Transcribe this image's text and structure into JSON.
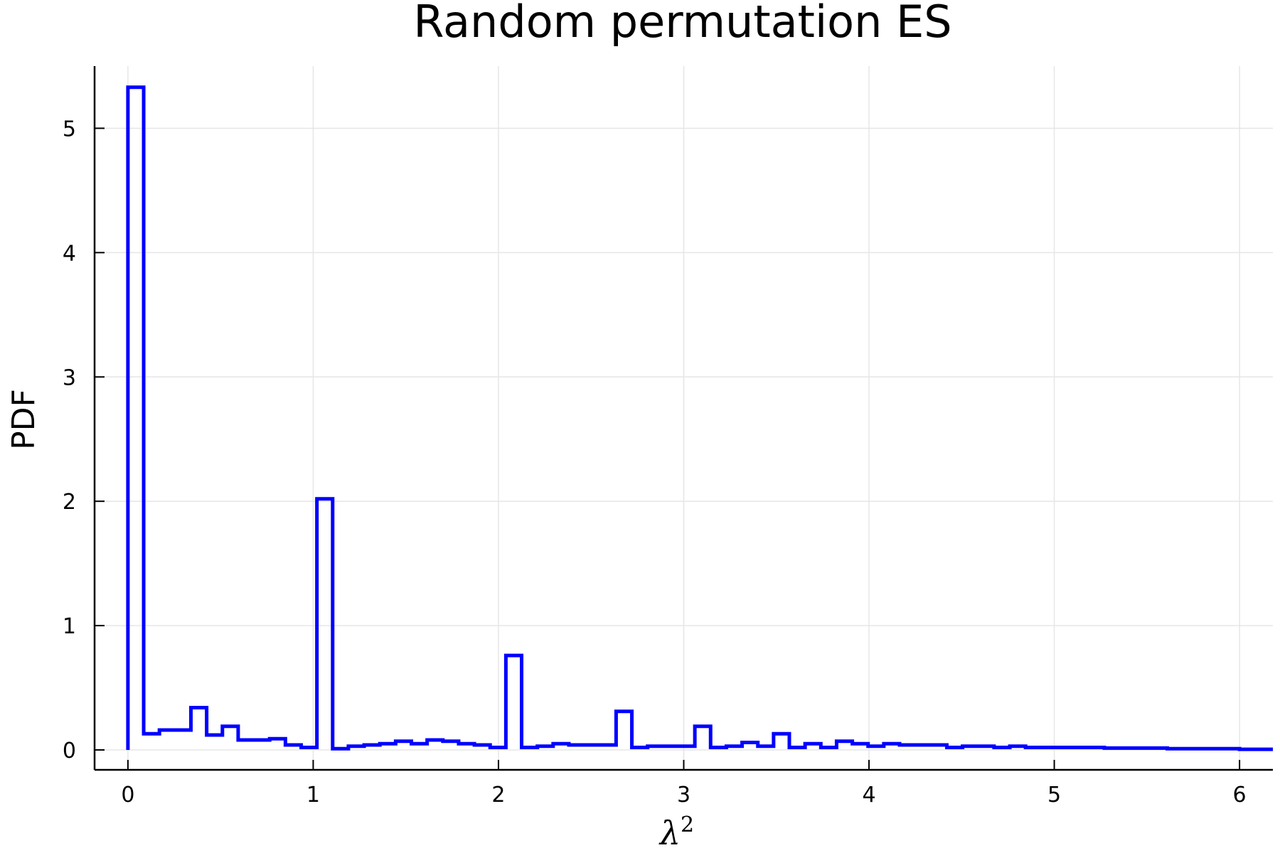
{
  "chart_data": {
    "type": "line",
    "title": "Random permutation ES",
    "xlabel": "λ",
    "xlabel_superscript": "2",
    "ylabel": "PDF",
    "xlim": [
      -0.18,
      6.18
    ],
    "ylim": [
      -0.16,
      5.5
    ],
    "xticks": [
      0,
      1,
      2,
      3,
      4,
      5,
      6
    ],
    "yticks": [
      0,
      1,
      2,
      3,
      4,
      5
    ],
    "grid": true,
    "line_color": "#0000ff",
    "step_x": [
      0,
      0.085,
      0.17,
      0.34,
      0.425,
      0.51,
      0.595,
      0.765,
      0.85,
      0.935,
      1.02,
      1.105,
      1.19,
      1.275,
      1.36,
      1.445,
      1.53,
      1.615,
      1.7,
      1.785,
      1.87,
      1.955,
      2.04,
      2.125,
      2.21,
      2.295,
      2.38,
      2.465,
      2.55,
      2.635,
      2.72,
      2.805,
      2.89,
      2.975,
      3.06,
      3.145,
      3.23,
      3.315,
      3.4,
      3.485,
      3.57,
      3.655,
      3.74,
      3.825,
      3.91,
      3.995,
      4.08,
      4.165,
      4.25,
      4.335,
      4.42,
      4.505,
      4.59,
      4.675,
      4.76,
      4.845,
      4.93,
      5.015,
      5.1,
      5.185,
      5.27,
      5.355,
      5.44,
      5.525,
      5.61,
      5.695,
      5.78,
      5.865,
      6.0
    ],
    "values": [
      5.33,
      0.13,
      0.16,
      0.34,
      0.12,
      0.19,
      0.08,
      0.09,
      0.04,
      0.02,
      2.02,
      0.01,
      0.03,
      0.04,
      0.05,
      0.07,
      0.05,
      0.08,
      0.07,
      0.05,
      0.04,
      0.02,
      0.76,
      0.02,
      0.03,
      0.05,
      0.04,
      0.04,
      0.04,
      0.31,
      0.02,
      0.03,
      0.03,
      0.03,
      0.19,
      0.02,
      0.03,
      0.06,
      0.03,
      0.13,
      0.02,
      0.05,
      0.02,
      0.07,
      0.05,
      0.03,
      0.05,
      0.04,
      0.04,
      0.04,
      0.02,
      0.03,
      0.03,
      0.02,
      0.03,
      0.02,
      0.02,
      0.02,
      0.02,
      0.02,
      0.015,
      0.015,
      0.015,
      0.015,
      0.01,
      0.01,
      0.01,
      0.01,
      0.005
    ]
  }
}
